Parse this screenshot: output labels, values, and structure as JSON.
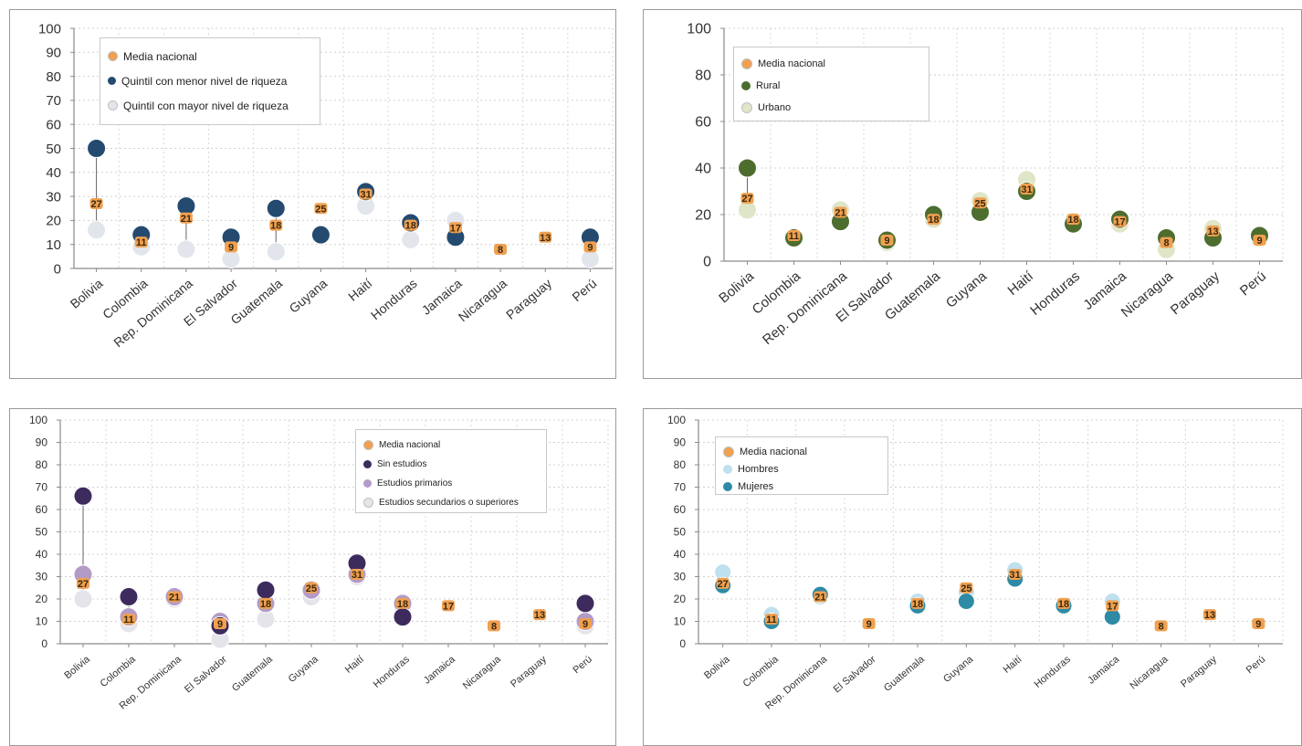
{
  "chart_data": [
    {
      "type": "scatter",
      "categories": [
        "Bolivia",
        "Colombia",
        "Rep. Dominicana",
        "El Salvador",
        "Guatemala",
        "Guyana",
        "Haití",
        "Honduras",
        "Jamaica",
        "Nicaragua",
        "Paraguay",
        "Perú"
      ],
      "y_ticks": [
        "0",
        "10",
        "20",
        "30",
        "40",
        "50",
        "60",
        "70",
        "80",
        "90",
        "100"
      ],
      "ylim": [
        0,
        100
      ],
      "grid": true,
      "legend_placement": "top-left",
      "series": [
        {
          "name": "Quintil con mayor nivel de riqueza",
          "color": "#e2e6ec",
          "values": [
            16,
            9,
            8,
            4,
            7,
            null,
            26,
            12,
            20,
            null,
            null,
            4
          ]
        },
        {
          "name": "Quintil con menor nivel de riqueza",
          "color": "#254a70",
          "values": [
            50,
            14,
            26,
            13,
            25,
            14,
            32,
            19,
            13,
            null,
            null,
            13
          ]
        },
        {
          "name": "Media nacional",
          "color": "#f0a050",
          "values": [
            27,
            11,
            21,
            9,
            18,
            25,
            31,
            18,
            17,
            8,
            13,
            9
          ],
          "labels": [
            "27",
            "11",
            "21",
            "9",
            "18",
            "25",
            "31",
            "18",
            "17",
            "8",
            "13",
            "9"
          ]
        }
      ]
    },
    {
      "type": "scatter",
      "categories": [
        "Bolivia",
        "Colombia",
        "Rep. Dominicana",
        "El Salvador",
        "Guatemala",
        "Guyana",
        "Haití",
        "Honduras",
        "Jamaica",
        "Nicaragua",
        "Paraguay",
        "Perú"
      ],
      "y_ticks": [
        "0",
        "20",
        "40",
        "60",
        "80",
        "100"
      ],
      "ylim": [
        0,
        100
      ],
      "grid": true,
      "legend_placement": "top-left",
      "series": [
        {
          "name": "Urbano",
          "color": "#dfe6c8",
          "values": [
            22,
            10,
            22,
            8,
            18,
            26,
            35,
            17,
            16,
            5,
            14,
            10
          ]
        },
        {
          "name": "Rural",
          "color": "#4c6d2e",
          "values": [
            40,
            10,
            17,
            9,
            20,
            21,
            30,
            16,
            18,
            10,
            10,
            11
          ]
        },
        {
          "name": "Media nacional",
          "color": "#f0a050",
          "values": [
            27,
            11,
            21,
            9,
            18,
            25,
            31,
            18,
            17,
            8,
            13,
            9
          ],
          "labels": [
            "27",
            "11",
            "21",
            "9",
            "18",
            "25",
            "31",
            "18",
            "17",
            "8",
            "13",
            "9"
          ]
        }
      ]
    },
    {
      "type": "scatter",
      "categories": [
        "Bolivia",
        "Colombia",
        "Rep. Dominicana",
        "El Salvador",
        "Guatemala",
        "Guyana",
        "Haití",
        "Honduras",
        "Jamaica",
        "Nicaragua",
        "Paraguay",
        "Perú"
      ],
      "y_ticks": [
        "0",
        "10",
        "20",
        "30",
        "40",
        "50",
        "60",
        "70",
        "80",
        "90",
        "100"
      ],
      "ylim": [
        0,
        100
      ],
      "grid": true,
      "legend_placement": "top-right",
      "series": [
        {
          "name": "Estudios secundarios o superiores",
          "color": "#e4e4ea",
          "values": [
            20,
            9,
            20,
            2,
            11,
            21,
            30,
            16,
            null,
            null,
            null,
            8
          ]
        },
        {
          "name": "Estudios primarios",
          "color": "#b39bc8",
          "values": [
            31,
            12,
            21,
            10,
            18,
            24,
            31,
            18,
            null,
            null,
            null,
            10
          ]
        },
        {
          "name": "Sin estudios",
          "color": "#3d2b5e",
          "values": [
            66,
            21,
            null,
            8,
            24,
            null,
            36,
            12,
            null,
            null,
            null,
            18
          ]
        },
        {
          "name": "Media nacional",
          "color": "#f0a050",
          "values": [
            27,
            11,
            21,
            9,
            18,
            25,
            31,
            18,
            17,
            8,
            13,
            9
          ],
          "labels": [
            "27",
            "11",
            "21",
            "9",
            "18",
            "25",
            "31",
            "18",
            "17",
            "8",
            "13",
            "9"
          ]
        }
      ]
    },
    {
      "type": "scatter",
      "categories": [
        "Bolivia",
        "Colombia",
        "Rep. Dominicana",
        "El Salvador",
        "Guatemala",
        "Guyana",
        "Haití",
        "Honduras",
        "Jamaica",
        "Nicaragua",
        "Paraguay",
        "Perú"
      ],
      "y_ticks": [
        "0",
        "10",
        "20",
        "30",
        "40",
        "50",
        "60",
        "70",
        "80",
        "90",
        "100"
      ],
      "ylim": [
        0,
        100
      ],
      "grid": true,
      "legend_placement": "top-left",
      "series": [
        {
          "name": "Hombres",
          "color": "#bfe0ee",
          "values": [
            32,
            13,
            21,
            null,
            19,
            23,
            33,
            17,
            19,
            null,
            null,
            null
          ]
        },
        {
          "name": "Mujeres",
          "color": "#2e8aa5",
          "values": [
            26,
            10,
            22,
            null,
            17,
            19,
            29,
            17,
            12,
            null,
            null,
            null
          ]
        },
        {
          "name": "Media nacional",
          "color": "#f0a050",
          "values": [
            27,
            11,
            21,
            9,
            18,
            25,
            31,
            18,
            17,
            8,
            13,
            9
          ],
          "labels": [
            "27",
            "11",
            "21",
            "9",
            "18",
            "25",
            "31",
            "18",
            "17",
            "8",
            "13",
            "9"
          ]
        }
      ]
    }
  ],
  "legends": [
    {
      "items": [
        {
          "label": "Media nacional",
          "color": "#f0a050"
        },
        {
          "label": "Quintil con menor nivel de riqueza",
          "color": "#254a70"
        },
        {
          "label": "Quintil con mayor nivel de riqueza",
          "color": "#e2e6ec"
        }
      ]
    },
    {
      "items": [
        {
          "label": "Media nacional",
          "color": "#f0a050"
        },
        {
          "label": "Rural",
          "color": "#4c6d2e"
        },
        {
          "label": "Urbano",
          "color": "#dfe6c8"
        }
      ]
    },
    {
      "items": [
        {
          "label": "Media nacional",
          "color": "#f0a050"
        },
        {
          "label": "Sin estudios",
          "color": "#3d2b5e"
        },
        {
          "label": "Estudios primarios",
          "color": "#b39bc8"
        },
        {
          "label": "Estudios secundarios o superiores",
          "color": "#e4e4ea"
        }
      ]
    },
    {
      "items": [
        {
          "label": "Media nacional",
          "color": "#f0a050"
        },
        {
          "label": "Hombres",
          "color": "#bfe0ee"
        },
        {
          "label": "Mujeres",
          "color": "#2e8aa5"
        }
      ]
    }
  ]
}
